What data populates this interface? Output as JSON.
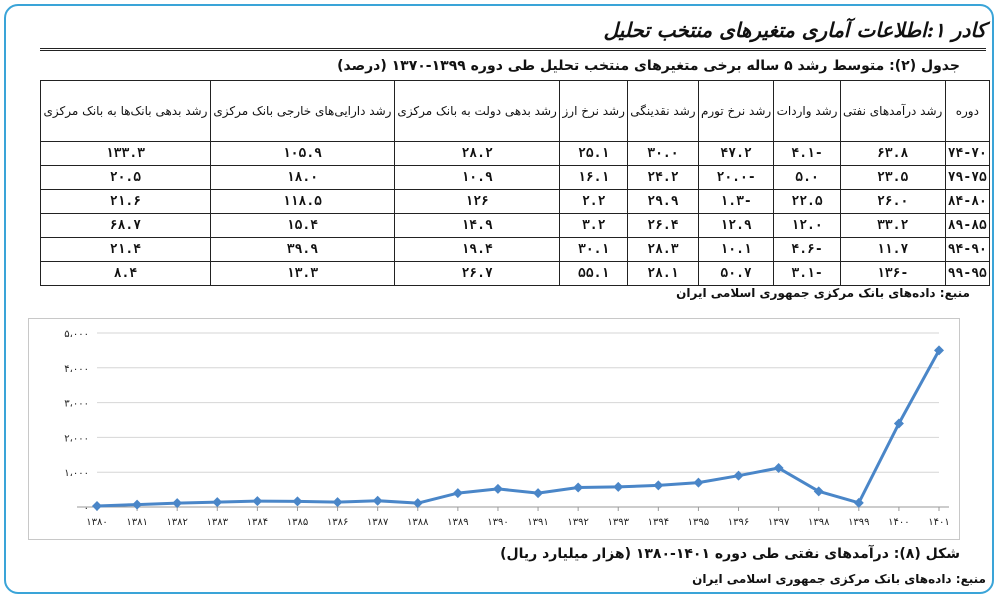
{
  "box": {
    "title": "کادر ۱:اطلاعات آماری متغیرهای منتخب تحلیل"
  },
  "table": {
    "caption": "جدول (۲): متوسط رشد ۵ ساله برخی متغیرهای منتخب تحلیل طی دوره ۱۳۹۹-۱۳۷۰ (درصد)",
    "headers": [
      "دوره",
      "رشد درآمدهای نفتی",
      "رشد واردات",
      "رشد نرخ تورم",
      "رشد نقدینگی",
      "رشد نرخ ارز",
      "رشد بدهی دولت به بانک مرکزی",
      "رشد دارایی‌های خارجی بانک مرکزی",
      "رشد بدهی بانک‌ها به بانک مرکزی"
    ],
    "rows": [
      [
        "۷۴-۷۰",
        "۶۳.۸",
        "-۴.۱",
        "۴۷.۲",
        "۳۰.۰",
        "۲۵.۱",
        "۲۸.۲",
        "۱۰۵.۹",
        "۱۳۳.۳"
      ],
      [
        "۷۹-۷۵",
        "۲۳.۵",
        "۵.۰",
        "-۲۰.۰",
        "۲۴.۲",
        "۱۶.۱",
        "۱۰.۹",
        "۱۸.۰",
        "۲۰.۵"
      ],
      [
        "۸۴-۸۰",
        "۲۶.۰",
        "۲۲.۵",
        "-۱.۳",
        "۲۹.۹",
        "۲.۲",
        "۱۲۶",
        "۱۱۸.۵",
        "۲۱.۶"
      ],
      [
        "۸۹-۸۵",
        "۳۳.۲",
        "۱۲.۰",
        "۱۲.۹",
        "۲۶.۴",
        "۳.۲",
        "۱۴.۹",
        "۱۵.۴",
        "۶۸.۷"
      ],
      [
        "۹۴-۹۰",
        "۱۱.۷",
        "-۴.۶",
        "۱۰.۱",
        "۲۸.۳",
        "۳۰.۱",
        "۱۹.۴",
        "۳۹.۹",
        "۲۱.۴"
      ],
      [
        "۹۹-۹۵",
        "-۱۳۶",
        "-۳.۱",
        "۵۰.۷",
        "۲۸.۱",
        "۵۵.۱",
        "۲۶.۷",
        "۱۳.۳",
        "۸.۴"
      ]
    ],
    "source": "منبع: داده‌های بانک مرکزی جمهوری اسلامی ایران"
  },
  "figure": {
    "caption": "شکل (۸): درآمدهای نفتی طی دوره ۱۴۰۱-۱۳۸۰ (هزار میلیارد ریال)",
    "source": "منبع: داده‌های بانک مرکزی جمهوری اسلامی ایران"
  },
  "chart_data": {
    "type": "line",
    "title": "",
    "xlabel": "",
    "ylabel": "",
    "x": [
      "۱۳۸۰",
      "۱۳۸۱",
      "۱۳۸۲",
      "۱۳۸۳",
      "۱۳۸۴",
      "۱۳۸۵",
      "۱۳۸۶",
      "۱۳۸۷",
      "۱۳۸۸",
      "۱۳۸۹",
      "۱۳۹۰",
      "۱۳۹۱",
      "۱۳۹۲",
      "۱۳۹۳",
      "۱۳۹۴",
      "۱۳۹۵",
      "۱۳۹۶",
      "۱۳۹۷",
      "۱۳۹۸",
      "۱۳۹۹",
      "۱۴۰۰",
      "۱۴۰۱"
    ],
    "series": [
      {
        "name": "",
        "values": [
          30,
          70,
          110,
          140,
          170,
          160,
          140,
          180,
          110,
          400,
          520,
          400,
          560,
          580,
          620,
          700,
          900,
          1120,
          450,
          120,
          2400,
          4500
        ]
      }
    ],
    "ylim": [
      0,
      5000
    ],
    "yticks": [
      0,
      1000,
      2000,
      3000,
      4000,
      5000
    ],
    "ytick_labels": [
      "۰",
      "۱،۰۰۰",
      "۲،۰۰۰",
      "۳،۰۰۰",
      "۴،۰۰۰",
      "۵،۰۰۰"
    ],
    "grid": true,
    "legend": "none",
    "line_color": "#4a86c8"
  }
}
